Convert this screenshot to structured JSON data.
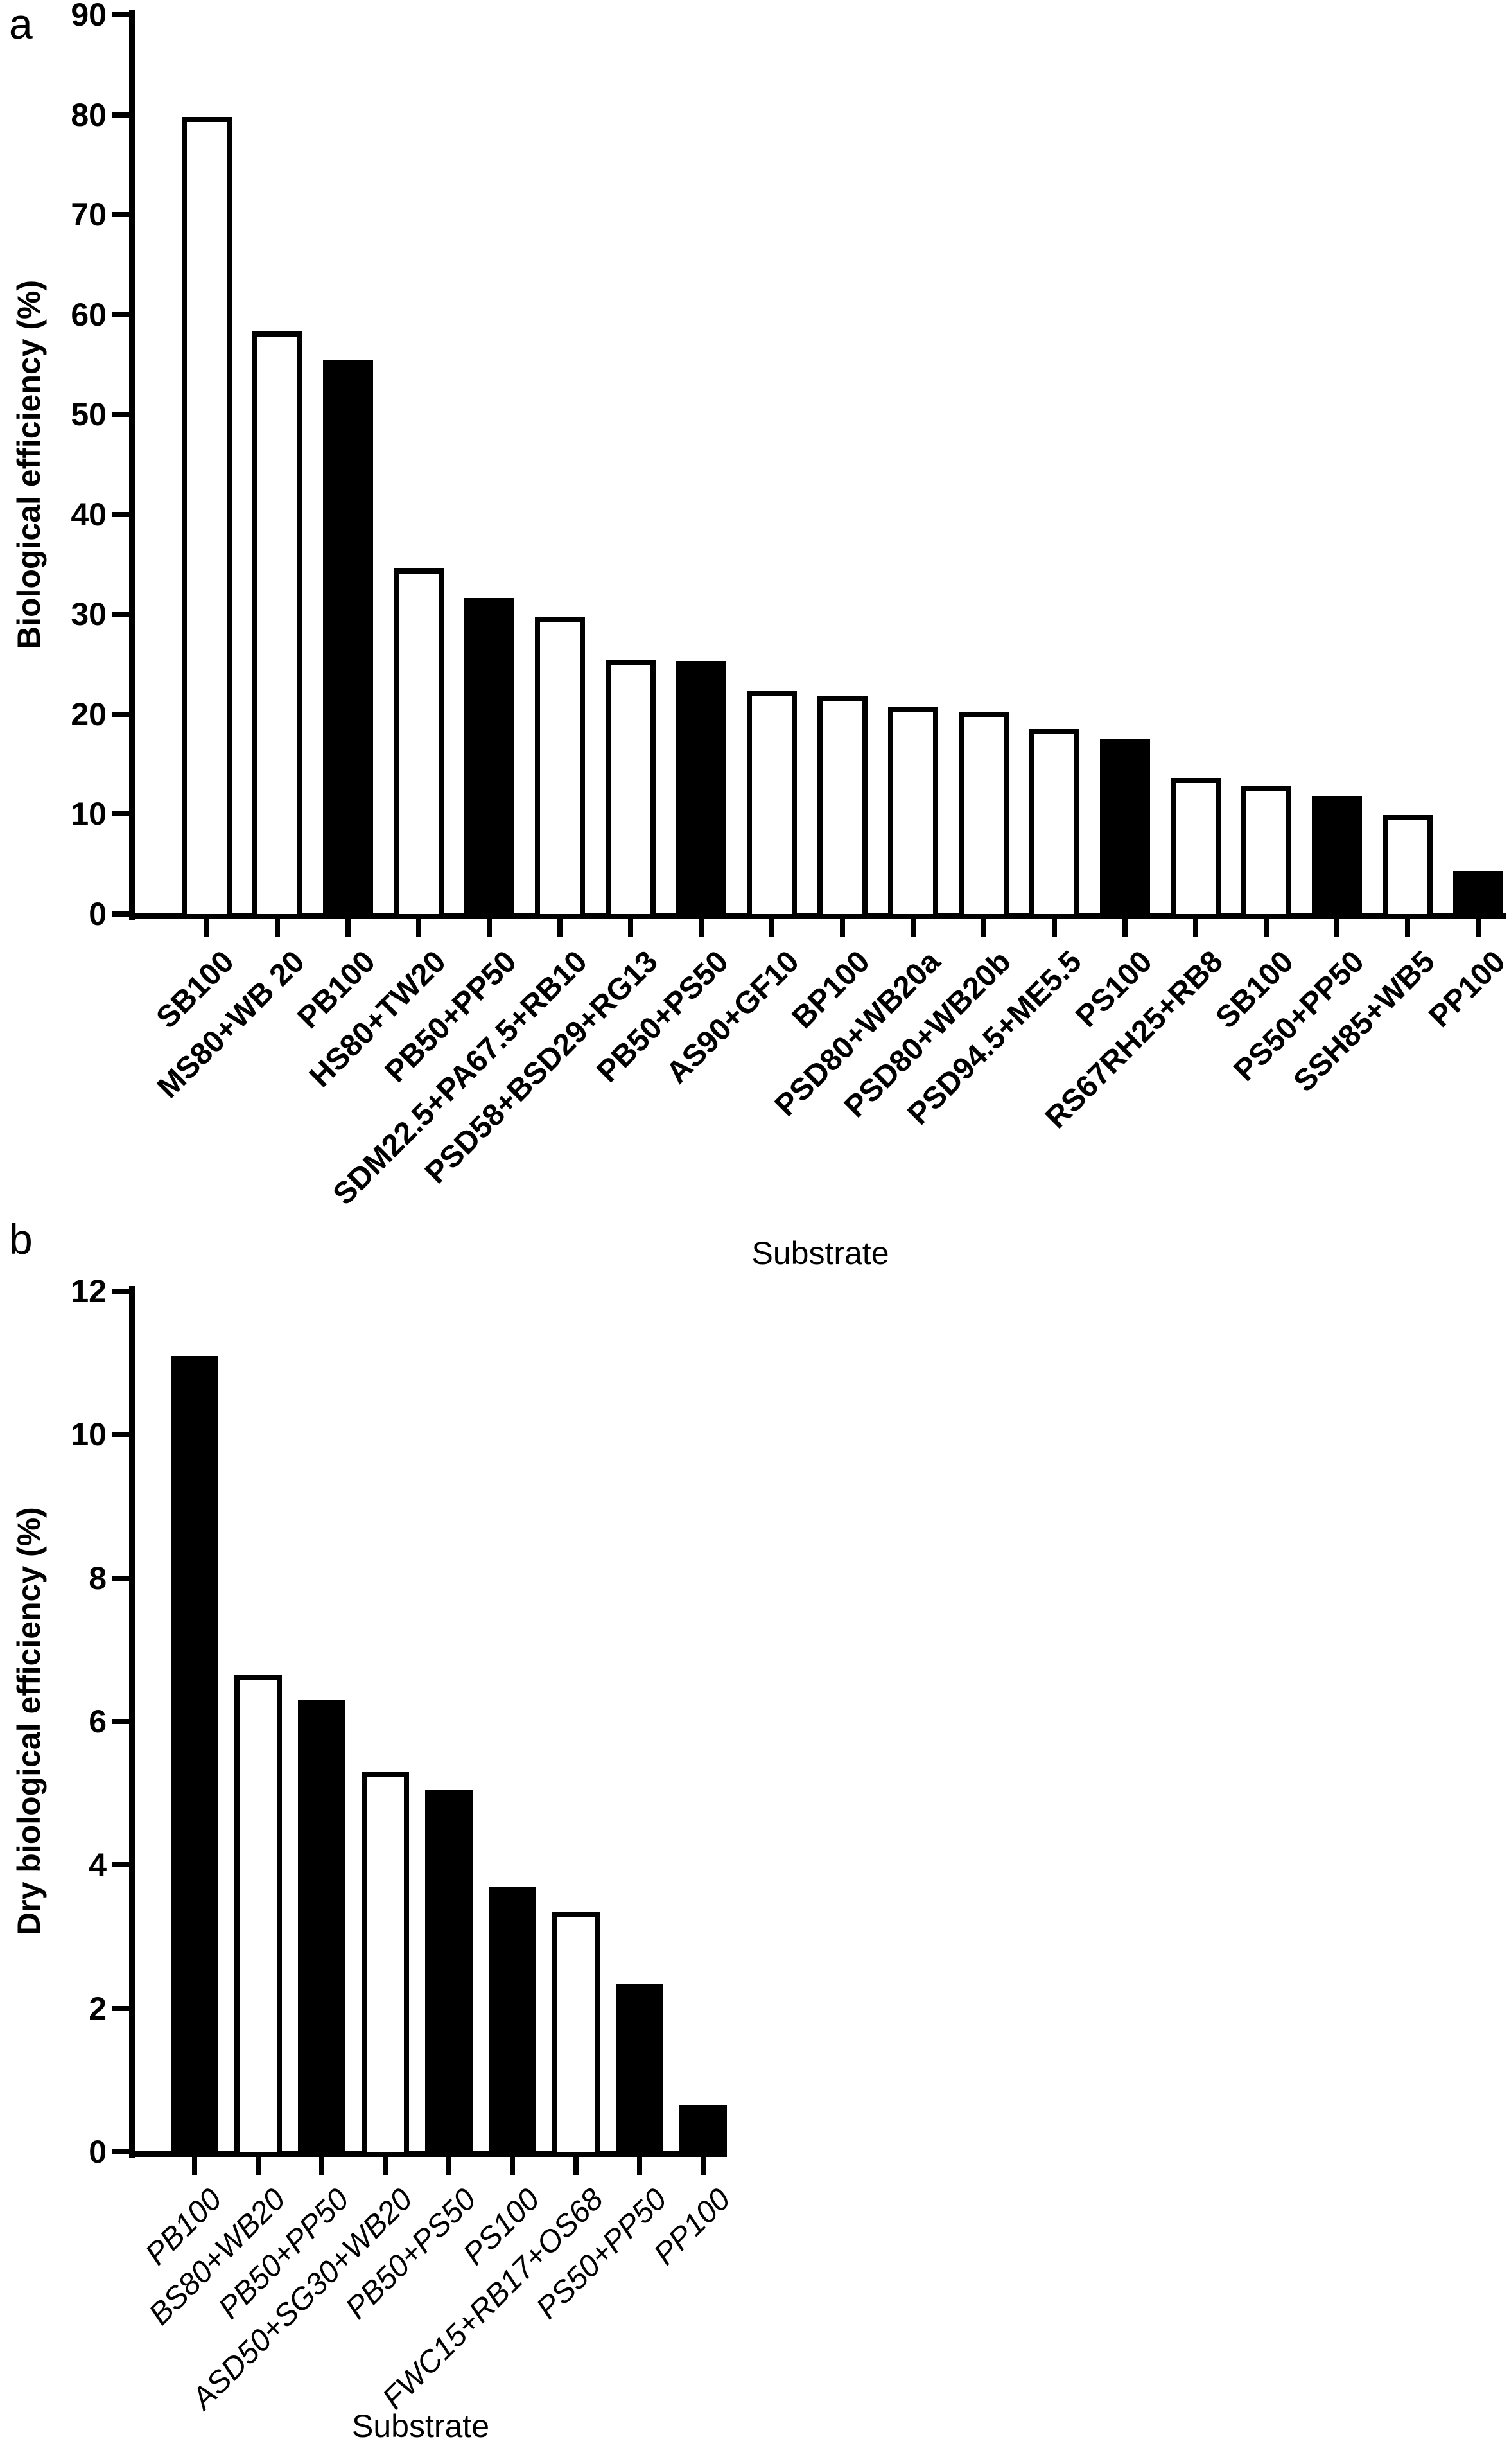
{
  "panels": [
    {
      "label": "a"
    },
    {
      "label": "b"
    }
  ],
  "colors": {
    "axis": "#000000",
    "bar_fill_black": "#000000",
    "bar_fill_white": "#ffffff",
    "bar_outline": "#000000"
  },
  "chart_data": [
    {
      "type": "bar",
      "panel": "a",
      "title": "",
      "xlabel": "Substrate",
      "ylabel": "Biological efficiency (%)",
      "ylim": [
        0,
        90
      ],
      "ytick_step": 10,
      "grid": false,
      "legend": "none",
      "categories": [
        "SB100",
        "MS80+WB 20",
        "PB100",
        "HS80+TW20",
        "PB50+PP50",
        "SDM22.5+PA67.5+RB10",
        "PSD58+BSD29+RG13",
        "PB50+PS50",
        "AS90+GF10",
        "BP100",
        "PSD80+WB20a",
        "PSD80+WB20b",
        "PSD94.5+ME5.5",
        "PS100",
        "RS67RH25+RB8",
        "SB100",
        "PS50+PP50",
        "SSH85+WB5",
        "PP100"
      ],
      "values": [
        79.8,
        58.3,
        55.4,
        34.6,
        31.6,
        29.7,
        25.4,
        25.3,
        22.4,
        21.8,
        20.7,
        20.2,
        18.5,
        17.5,
        13.6,
        12.8,
        11.8,
        9.9,
        4.3
      ],
      "bar_fills": [
        "white",
        "white",
        "black",
        "white",
        "black",
        "white",
        "white",
        "black",
        "white",
        "white",
        "white",
        "white",
        "white",
        "black",
        "white",
        "white",
        "black",
        "white",
        "black"
      ]
    },
    {
      "type": "bar",
      "panel": "b",
      "title": "",
      "xlabel": "Substrate",
      "ylabel": "Dry biological efficiency (%)",
      "ylim": [
        0,
        12
      ],
      "ytick_step": 2,
      "grid": false,
      "legend": "none",
      "categories": [
        "PB100",
        "BS80+WB20",
        "PB50+PP50",
        "ASD50+SG30+WB20",
        "PB50+PS50",
        "PS100",
        "FWC15+RB17+OS68",
        "PS50+PP50",
        "PP100"
      ],
      "values": [
        11.1,
        6.65,
        6.3,
        5.3,
        5.05,
        3.7,
        3.35,
        2.35,
        0.65
      ],
      "bar_fills": [
        "black",
        "white",
        "black",
        "white",
        "black",
        "black",
        "white",
        "black",
        "black"
      ]
    }
  ]
}
